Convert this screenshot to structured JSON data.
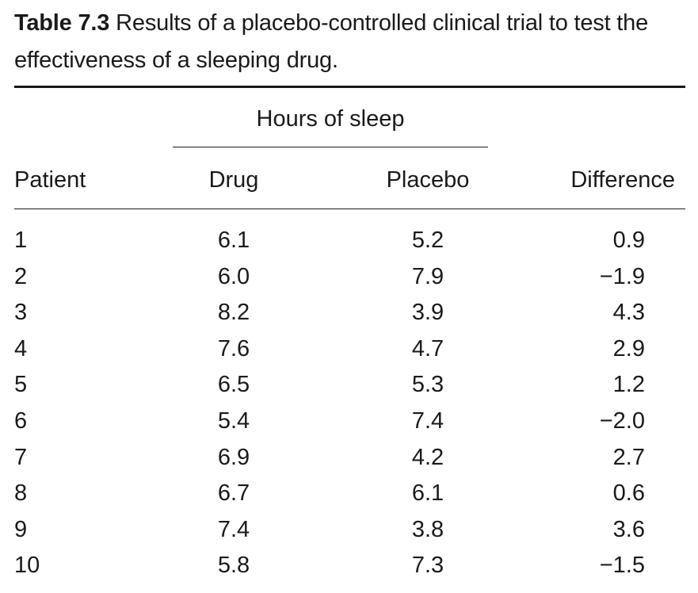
{
  "caption": {
    "label": "Table 7.3",
    "text": "Results of a placebo-controlled clinical trial to test the effectiveness of a sleeping drug."
  },
  "table": {
    "group_header": "Hours of sleep",
    "columns": {
      "patient": "Patient",
      "drug": "Drug",
      "placebo": "Placebo",
      "difference": "Difference"
    },
    "rows": [
      {
        "patient": "1",
        "drug": "6.1",
        "placebo": "5.2",
        "difference": "0.9"
      },
      {
        "patient": "2",
        "drug": "6.0",
        "placebo": "7.9",
        "difference": "−1.9"
      },
      {
        "patient": "3",
        "drug": "8.2",
        "placebo": "3.9",
        "difference": "4.3"
      },
      {
        "patient": "4",
        "drug": "7.6",
        "placebo": "4.7",
        "difference": "2.9"
      },
      {
        "patient": "5",
        "drug": "6.5",
        "placebo": "5.3",
        "difference": "1.2"
      },
      {
        "patient": "6",
        "drug": "5.4",
        "placebo": "7.4",
        "difference": "−2.0"
      },
      {
        "patient": "7",
        "drug": "6.9",
        "placebo": "4.2",
        "difference": "2.7"
      },
      {
        "patient": "8",
        "drug": "6.7",
        "placebo": "6.1",
        "difference": "0.6"
      },
      {
        "patient": "9",
        "drug": "7.4",
        "placebo": "3.8",
        "difference": "3.6"
      },
      {
        "patient": "10",
        "drug": "5.8",
        "placebo": "7.3",
        "difference": "−1.5"
      }
    ]
  }
}
